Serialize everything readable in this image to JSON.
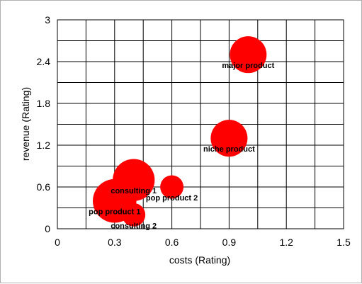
{
  "chart_data": {
    "type": "scatter",
    "variant": "bubble",
    "xlabel": "costs (Rating)",
    "ylabel": "revenue (Rating)",
    "xlim": [
      0,
      1.5
    ],
    "ylim": [
      0,
      3
    ],
    "xticks": [
      "0",
      "0.3",
      "0.6",
      "0.9",
      "1.2",
      "1.5"
    ],
    "yticks": [
      "0",
      "0.6",
      "1.2",
      "1.8",
      "2.4",
      "3"
    ],
    "grid": true,
    "legend": "none",
    "bubble_color": "#ff0000",
    "points": [
      {
        "label": "major product",
        "x": 1.0,
        "y": 2.5,
        "size": 1.0
      },
      {
        "label": "niche product",
        "x": 0.9,
        "y": 1.3,
        "size": 1.0
      },
      {
        "label": "consulting 1",
        "x": 0.4,
        "y": 0.7,
        "size": 1.3
      },
      {
        "label": "pop product 2",
        "x": 0.6,
        "y": 0.6,
        "size": 0.4
      },
      {
        "label": "pop product 1",
        "x": 0.3,
        "y": 0.4,
        "size": 1.4
      },
      {
        "label": "consulting 2",
        "x": 0.4,
        "y": 0.2,
        "size": 0.4
      }
    ]
  }
}
